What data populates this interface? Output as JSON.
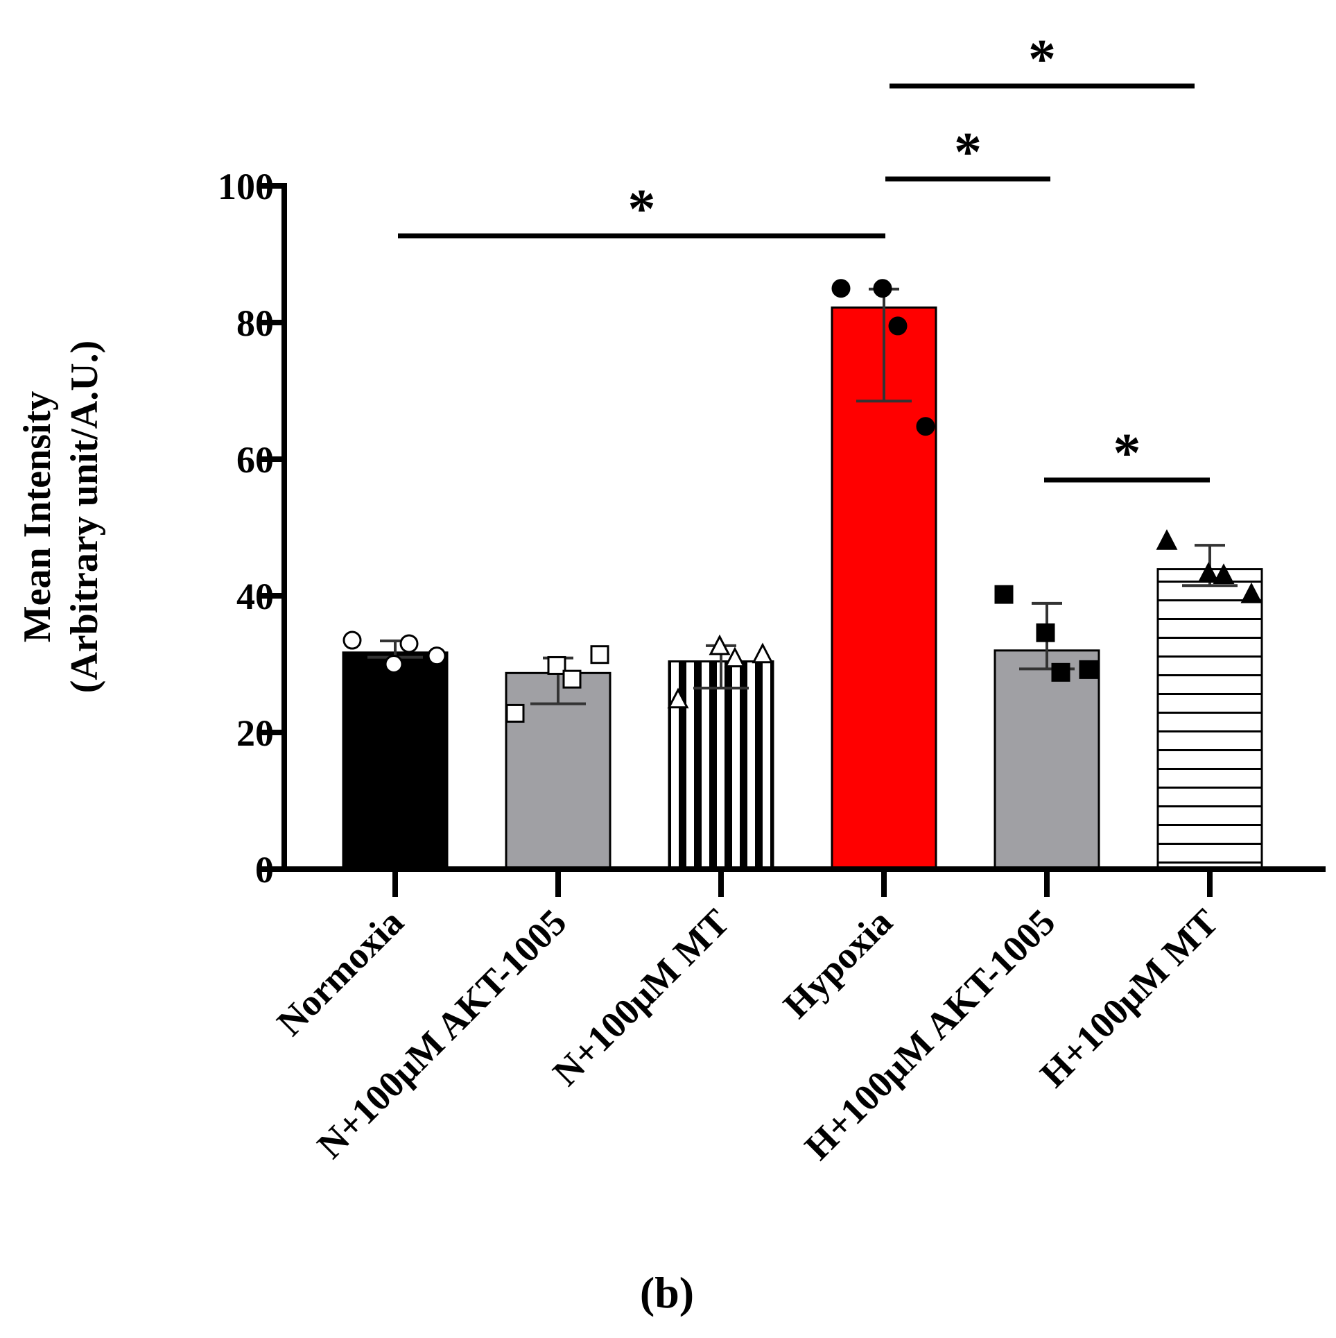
{
  "chart_data": {
    "type": "bar",
    "title": "",
    "panel_label": "(b)",
    "xlabel": "",
    "ylabel_line1": "Mean Intensity",
    "ylabel_line2": "(Arbitrary unit/A.U.)",
    "ylim": [
      0,
      100
    ],
    "yticks": [
      0,
      20,
      40,
      60,
      80,
      100
    ],
    "categories": [
      "Normoxia",
      "N+100μM AKT-1005",
      "N+100μM MT",
      "Hypoxia",
      "H+100μM AKT-1005",
      "H+100μM MT"
    ],
    "values": [
      31.7,
      28.7,
      30.4,
      82.2,
      32.0,
      43.9
    ],
    "error_low": [
      31.0,
      24.2,
      26.5,
      68.5,
      29.3,
      41.5
    ],
    "error_high": [
      33.4,
      30.9,
      32.7,
      84.9,
      38.9,
      47.4
    ],
    "points": [
      [
        33.5,
        30.0,
        33.0,
        31.2
      ],
      [
        22.8,
        29.8,
        27.8,
        31.4
      ],
      [
        24.8,
        32.6,
        30.8,
        31.4
      ],
      [
        85.0,
        85.0,
        79.5,
        64.8
      ],
      [
        40.2,
        34.6,
        28.8,
        29.2
      ],
      [
        48.0,
        43.2,
        43.0,
        40.2
      ]
    ],
    "significance": [
      {
        "from": "Normoxia",
        "to": "Hypoxia",
        "label": "*"
      },
      {
        "from": "Hypoxia",
        "to": "H+100μM AKT-1005",
        "label": "*"
      },
      {
        "from": "Hypoxia",
        "to": "H+100μM MT",
        "label": "*"
      },
      {
        "from": "H+100μM AKT-1005",
        "to": "H+100μM MT",
        "label": "*"
      }
    ],
    "bar_styles": [
      "solid-black",
      "solid-gray",
      "vertical-stripes",
      "solid-red",
      "solid-gray",
      "horizontal-stripes"
    ],
    "marker_styles": [
      "open-circle",
      "open-square",
      "open-triangle",
      "filled-circle",
      "filled-square",
      "filled-triangle"
    ],
    "colors": {
      "black": "#000000",
      "gray": "#a0a0a4",
      "red": "#ff0000",
      "white": "#ffffff"
    }
  }
}
